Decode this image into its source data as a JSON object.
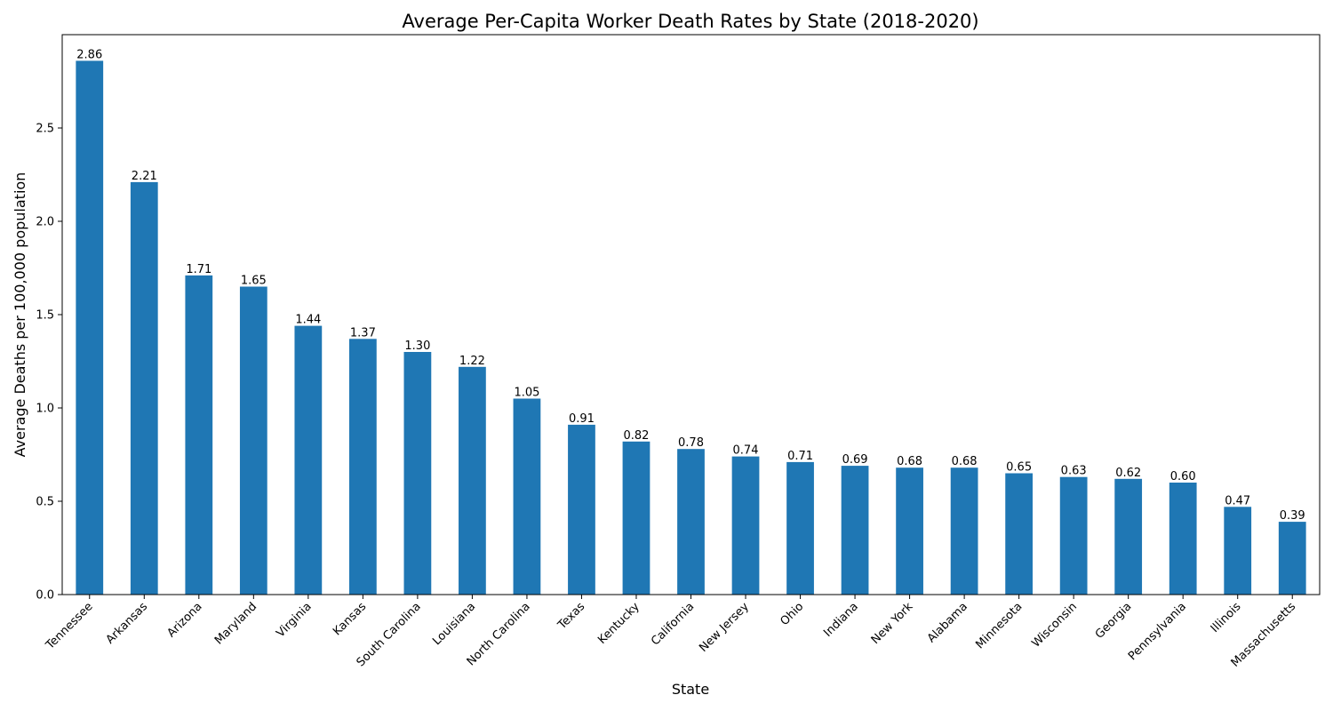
{
  "chart_data": {
    "type": "bar",
    "title": "Average Per-Capita Worker Death Rates by State (2018-2020)",
    "xlabel": "State",
    "ylabel": "Average Deaths per 100,000 population",
    "categories": [
      "Tennessee",
      "Arkansas",
      "Arizona",
      "Maryland",
      "Virginia",
      "Kansas",
      "South Carolina",
      "Louisiana",
      "North Carolina",
      "Texas",
      "Kentucky",
      "California",
      "New Jersey",
      "Ohio",
      "Indiana",
      "New York",
      "Alabama",
      "Minnesota",
      "Wisconsin",
      "Georgia",
      "Pennsylvania",
      "Illinois",
      "Massachusetts"
    ],
    "values": [
      2.86,
      2.21,
      1.71,
      1.65,
      1.44,
      1.37,
      1.3,
      1.22,
      1.05,
      0.91,
      0.82,
      0.78,
      0.74,
      0.71,
      0.69,
      0.68,
      0.68,
      0.65,
      0.63,
      0.62,
      0.6,
      0.47,
      0.39
    ],
    "data_labels": [
      "2.86",
      "2.21",
      "1.71",
      "1.65",
      "1.44",
      "1.37",
      "1.30",
      "1.22",
      "1.05",
      "0.91",
      "0.82",
      "0.78",
      "0.74",
      "0.71",
      "0.69",
      "0.68",
      "0.68",
      "0.65",
      "0.63",
      "0.62",
      "0.60",
      "0.47",
      "0.39"
    ],
    "yticks": [
      0.0,
      0.5,
      1.0,
      1.5,
      2.0,
      2.5
    ],
    "ytick_labels": [
      "0.0",
      "0.5",
      "1.0",
      "1.5",
      "2.0",
      "2.5"
    ],
    "ylim": [
      0,
      3.0
    ],
    "bar_color": "#1f77b4",
    "grid": false,
    "legend": "none"
  }
}
